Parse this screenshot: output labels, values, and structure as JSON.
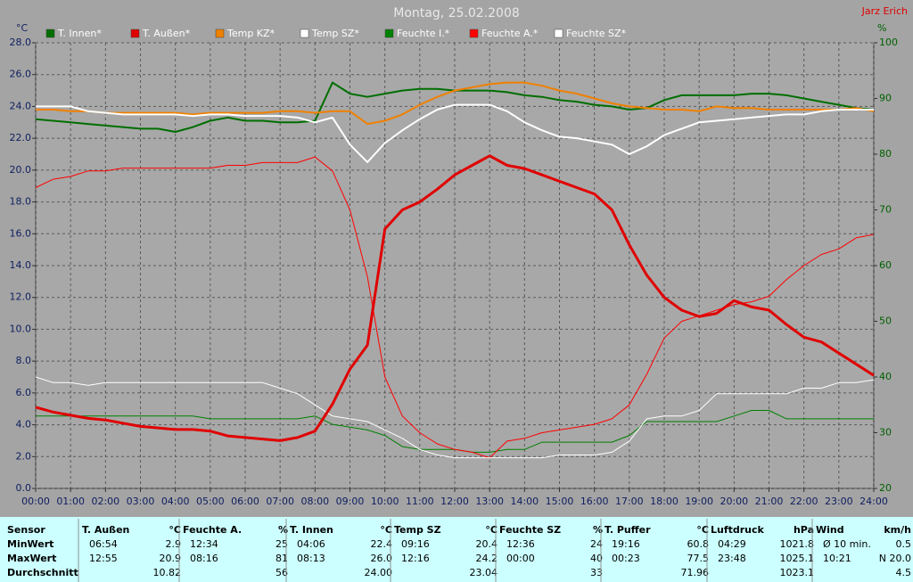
{
  "chart_data": {
    "type": "line",
    "title": "Montag, 25.02.2008",
    "author": "Jarz Erich",
    "y_label": "°C",
    "y2_label": "%",
    "grid": true,
    "x": [
      0,
      0.5,
      1,
      1.5,
      2,
      2.5,
      3,
      3.5,
      4,
      4.5,
      5,
      5.5,
      6,
      6.5,
      7,
      7.5,
      8,
      8.5,
      9,
      9.5,
      10,
      10.5,
      11,
      11.5,
      12,
      12.5,
      13,
      13.5,
      14,
      14.5,
      15,
      15.5,
      16,
      16.5,
      17,
      17.5,
      18,
      18.5,
      19,
      19.5,
      20,
      20.5,
      21,
      21.5,
      22,
      22.5,
      23,
      23.5,
      24
    ],
    "xlim": [
      0,
      24
    ],
    "xticks": [
      {
        "value": 0,
        "label": "00:00"
      },
      {
        "value": 1,
        "label": "01:00"
      },
      {
        "value": 2,
        "label": "02:00"
      },
      {
        "value": 3,
        "label": "03:00"
      },
      {
        "value": 4,
        "label": "04:00"
      },
      {
        "value": 5,
        "label": "05:00"
      },
      {
        "value": 6,
        "label": "06:00"
      },
      {
        "value": 7,
        "label": "07:00"
      },
      {
        "value": 8,
        "label": "08:00"
      },
      {
        "value": 9,
        "label": "09:00"
      },
      {
        "value": 10,
        "label": "10:00"
      },
      {
        "value": 11,
        "label": "11:00"
      },
      {
        "value": 12,
        "label": "12:00"
      },
      {
        "value": 13,
        "label": "13:00"
      },
      {
        "value": 14,
        "label": "14:00"
      },
      {
        "value": 15,
        "label": "15:00"
      },
      {
        "value": 16,
        "label": "16:00"
      },
      {
        "value": 17,
        "label": "17:00"
      },
      {
        "value": 18,
        "label": "18:00"
      },
      {
        "value": 19,
        "label": "19:00"
      },
      {
        "value": 20,
        "label": "20:00"
      },
      {
        "value": 21,
        "label": "21:00"
      },
      {
        "value": 22,
        "label": "22:00"
      },
      {
        "value": 23,
        "label": "23:00"
      },
      {
        "value": 24,
        "label": "24:00"
      }
    ],
    "ylim": [
      0,
      28
    ],
    "yticks": [
      {
        "value": 0,
        "label": "0.0"
      },
      {
        "value": 2,
        "label": "2.0"
      },
      {
        "value": 4,
        "label": "4.0"
      },
      {
        "value": 6,
        "label": "6.0"
      },
      {
        "value": 8,
        "label": "8.0"
      },
      {
        "value": 10,
        "label": "10.0"
      },
      {
        "value": 12,
        "label": "12.0"
      },
      {
        "value": 14,
        "label": "14.0"
      },
      {
        "value": 16,
        "label": "16.0"
      },
      {
        "value": 18,
        "label": "18.0"
      },
      {
        "value": 20,
        "label": "20.0"
      },
      {
        "value": 22,
        "label": "22.0"
      },
      {
        "value": 24,
        "label": "24.0"
      },
      {
        "value": 26,
        "label": "26.0"
      },
      {
        "value": 28,
        "label": "28.0"
      }
    ],
    "y2lim": [
      20,
      100
    ],
    "y2ticks": [
      20,
      30,
      40,
      50,
      60,
      70,
      80,
      90,
      100
    ],
    "series": [
      {
        "name": "T. Innen*",
        "color": "#006e00",
        "values": [
          23.2,
          23.1,
          23.0,
          22.9,
          22.8,
          22.7,
          22.6,
          22.6,
          22.4,
          22.7,
          23.1,
          23.3,
          23.1,
          23.1,
          23.0,
          23.0,
          23.1,
          25.5,
          24.8,
          24.6,
          24.8,
          25.0,
          25.1,
          25.1,
          25.0,
          25.0,
          25.0,
          24.9,
          24.7,
          24.6,
          24.4,
          24.3,
          24.1,
          24.0,
          23.8,
          23.9,
          24.4,
          24.7,
          24.7,
          24.7,
          24.7,
          24.8,
          24.8,
          24.7,
          24.5,
          24.3,
          24.1,
          23.9,
          23.8
        ]
      },
      {
        "name": "T. Außen*",
        "color": "#e00000",
        "values": [
          5.1,
          4.8,
          4.6,
          4.4,
          4.3,
          4.1,
          3.9,
          3.8,
          3.7,
          3.7,
          3.6,
          3.3,
          3.2,
          3.1,
          3.0,
          3.2,
          3.6,
          5.3,
          7.5,
          9.0,
          16.3,
          17.5,
          18.0,
          18.8,
          19.7,
          20.3,
          20.9,
          20.3,
          20.1,
          19.7,
          19.3,
          18.9,
          18.5,
          17.5,
          15.3,
          13.4,
          12.0,
          11.2,
          10.8,
          11.0,
          11.8,
          11.4,
          11.2,
          10.3,
          9.5,
          9.2,
          8.5,
          7.8,
          7.1
        ]
      },
      {
        "name": "Temp KZ*",
        "color": "#f08000",
        "values": [
          23.8,
          23.8,
          23.7,
          23.7,
          23.6,
          23.6,
          23.6,
          23.6,
          23.6,
          23.5,
          23.6,
          23.6,
          23.6,
          23.6,
          23.7,
          23.7,
          23.6,
          23.7,
          23.7,
          22.9,
          23.1,
          23.5,
          24.1,
          24.6,
          25.0,
          25.2,
          25.4,
          25.5,
          25.5,
          25.3,
          25.0,
          24.8,
          24.5,
          24.2,
          24.0,
          23.9,
          23.8,
          23.8,
          23.7,
          24.0,
          23.9,
          23.9,
          23.8,
          23.8,
          23.8,
          23.8,
          23.8,
          23.9,
          23.7
        ]
      },
      {
        "name": "Temp SZ*",
        "color": "#ffffff",
        "values": [
          24.0,
          24.0,
          24.0,
          23.7,
          23.6,
          23.5,
          23.5,
          23.5,
          23.5,
          23.4,
          23.5,
          23.5,
          23.4,
          23.4,
          23.4,
          23.3,
          23.0,
          23.3,
          21.6,
          20.5,
          21.7,
          22.5,
          23.2,
          23.8,
          24.1,
          24.1,
          24.1,
          23.7,
          23.0,
          22.5,
          22.1,
          22.0,
          21.8,
          21.6,
          21.0,
          21.5,
          22.2,
          22.6,
          23.0,
          23.1,
          23.2,
          23.3,
          23.4,
          23.5,
          23.5,
          23.7,
          23.8,
          23.8,
          23.8
        ]
      },
      {
        "name": "Feuchte I.*",
        "color": "#008000",
        "axis": "y2",
        "values": [
          33,
          33,
          33,
          33,
          33,
          33,
          33,
          33,
          33,
          33,
          32.5,
          32.5,
          32.5,
          32.5,
          32.5,
          32.5,
          33,
          31.5,
          31,
          30.5,
          29.5,
          27.5,
          27,
          27,
          27,
          26.5,
          26.5,
          27,
          27,
          28.3,
          28.3,
          28.3,
          28.3,
          28.3,
          29.5,
          32,
          32,
          32,
          32,
          32,
          33,
          34,
          34,
          32.5,
          32.5,
          32.5,
          32.5,
          32.5,
          32.5
        ]
      },
      {
        "name": "Feuchte A.*",
        "color": "#ff0000",
        "axis": "y2",
        "values": [
          74,
          75.5,
          76,
          77,
          77,
          77.5,
          77.5,
          77.5,
          77.5,
          77.5,
          77.5,
          78,
          78,
          78.5,
          78.5,
          78.5,
          79.5,
          77,
          70,
          58,
          40,
          33,
          30,
          28,
          27,
          26.5,
          25.5,
          28.5,
          29,
          30,
          30.5,
          31,
          31.5,
          32.5,
          35,
          40.5,
          47,
          50,
          51,
          52,
          53,
          53.5,
          54.5,
          57.5,
          60,
          62,
          63,
          65,
          65.6
        ]
      },
      {
        "name": "Feuchte SZ*",
        "color": "#ffffff",
        "axis": "y2",
        "values": [
          40,
          39,
          39,
          38.5,
          39,
          39,
          39,
          39,
          39,
          39,
          39,
          39,
          39,
          39,
          38,
          37,
          35,
          33,
          32.5,
          32,
          30.5,
          29,
          27,
          26,
          25.5,
          25.5,
          25.5,
          25.5,
          25.5,
          25.5,
          26,
          26,
          26,
          26.5,
          28.5,
          32.5,
          33,
          33,
          34,
          37,
          37,
          37,
          37,
          37,
          38,
          38,
          39,
          39,
          39.5
        ]
      }
    ]
  },
  "table": {
    "first_header": "Sensor",
    "row_labels": [
      "MinWert",
      "MaxWert",
      "Durchschnitt"
    ],
    "columns": [
      {
        "name": "T. Außen",
        "unit": "°C",
        "rows": [
          {
            "time": "06:54",
            "value": "2.9"
          },
          {
            "time": "12:55",
            "value": "20.9"
          },
          {
            "value": "10.82"
          }
        ]
      },
      {
        "name": "Feuchte A.",
        "unit": "%",
        "rows": [
          {
            "time": "12:34",
            "value": "25"
          },
          {
            "time": "08:16",
            "value": "81"
          },
          {
            "value": "56"
          }
        ]
      },
      {
        "name": "T. Innen",
        "unit": "°C",
        "rows": [
          {
            "time": "04:06",
            "value": "22.4"
          },
          {
            "time": "08:13",
            "value": "26.0"
          },
          {
            "value": "24.00"
          }
        ]
      },
      {
        "name": "Temp SZ",
        "unit": "°C",
        "rows": [
          {
            "time": "09:16",
            "value": "20.4"
          },
          {
            "time": "12:16",
            "value": "24.2"
          },
          {
            "value": "23.04"
          }
        ]
      },
      {
        "name": "Feuchte SZ",
        "unit": "%",
        "rows": [
          {
            "time": "12:36",
            "value": "24"
          },
          {
            "time": "00:00",
            "value": "40"
          },
          {
            "value": "33"
          }
        ]
      },
      {
        "name": "T. Puffer",
        "unit": "°C",
        "rows": [
          {
            "time": "19:16",
            "value": "60.8"
          },
          {
            "time": "00:23",
            "value": "77.5"
          },
          {
            "value": "71.96"
          }
        ]
      },
      {
        "name": "Luftdruck",
        "unit": "hPa",
        "rows": [
          {
            "time": "04:29",
            "value": "1021.8"
          },
          {
            "time": "23:48",
            "value": "1025.1"
          },
          {
            "value": "1023.1"
          }
        ]
      },
      {
        "name": "Wind",
        "unit": "km/h",
        "rows": [
          {
            "time": "Ø 10 min.",
            "value": "0.5"
          },
          {
            "time": "10:21",
            "value": "N 20.0"
          },
          {
            "value": "4.5"
          }
        ]
      }
    ]
  }
}
